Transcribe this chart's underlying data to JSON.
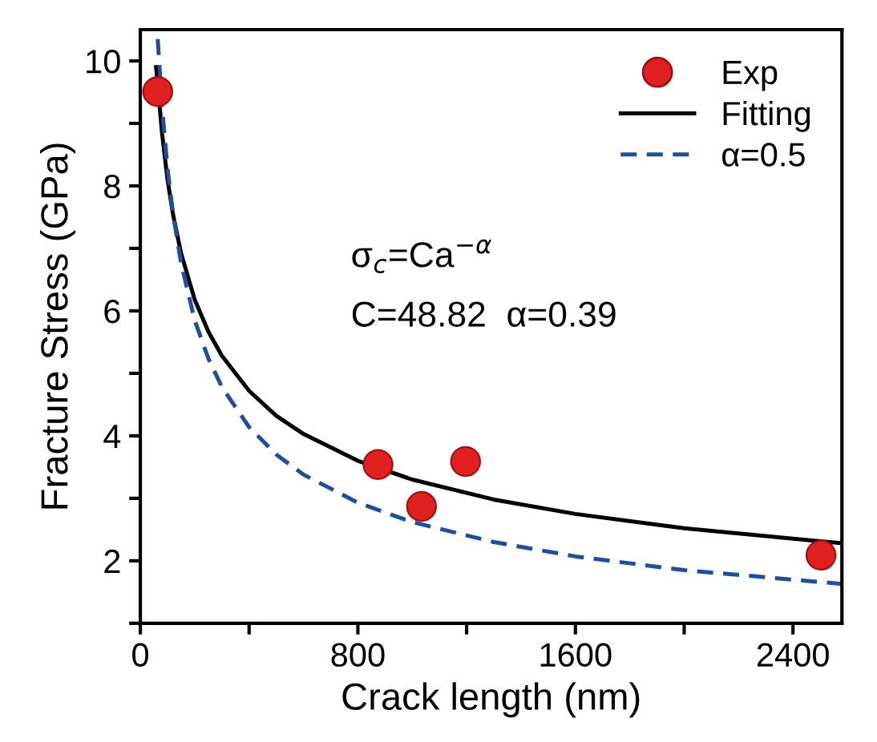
{
  "chart_data": {
    "type": "line",
    "xlabel": "Crack length (nm)",
    "ylabel": "Fracture Stress (GPa)",
    "xlim": [
      0,
      2580
    ],
    "ylim": [
      1,
      10.5
    ],
    "xticks": [
      0,
      {
        "value": 400,
        "label": null
      },
      800,
      {
        "value": 1200,
        "label": null
      },
      1600,
      {
        "value": 2000,
        "label": null
      },
      2400
    ],
    "yticks": [
      {
        "value": 1,
        "label": null
      },
      2,
      {
        "value": 3,
        "label": null
      },
      4,
      {
        "value": 5,
        "label": null
      },
      6,
      {
        "value": 7,
        "label": null
      },
      8,
      {
        "value": 9,
        "label": null
      },
      10
    ],
    "legend": "top right",
    "annotations": [
      "σ$_{c}$=Ca$^{−α}$",
      "C=48.82  α=0.39"
    ],
    "series": [
      {
        "name": "Exp",
        "type": "scatter",
        "color": "#e02020",
        "marker": "circle",
        "x": [
          64,
          874,
          1034,
          1196,
          2503
        ],
        "values": [
          9.51,
          3.54,
          2.87,
          3.59,
          2.09
        ]
      },
      {
        "name": "Fitting",
        "color": "#000000",
        "line_style": "solid",
        "x": [
          58,
          80,
          100,
          120,
          150,
          200,
          250,
          300,
          400,
          500,
          600,
          800,
          1000,
          1300,
          1600,
          2000,
          2580
        ],
        "values": [
          9.9,
          8.84,
          8.1,
          7.55,
          6.92,
          6.18,
          5.67,
          5.28,
          4.72,
          4.32,
          4.03,
          3.6,
          3.3,
          2.98,
          2.75,
          2.52,
          2.28
        ]
      },
      {
        "name": "α=0.5",
        "color": "#1f4e9e",
        "line_style": "dashed",
        "x": [
          64,
          80,
          100,
          120,
          150,
          200,
          250,
          300,
          400,
          500,
          600,
          800,
          1000,
          1300,
          1600,
          2000,
          2580
        ],
        "values": [
          10.35,
          9.26,
          8.28,
          7.56,
          6.76,
          5.85,
          5.24,
          4.78,
          4.14,
          3.7,
          3.38,
          2.93,
          2.62,
          2.3,
          2.07,
          1.85,
          1.63
        ]
      }
    ]
  }
}
